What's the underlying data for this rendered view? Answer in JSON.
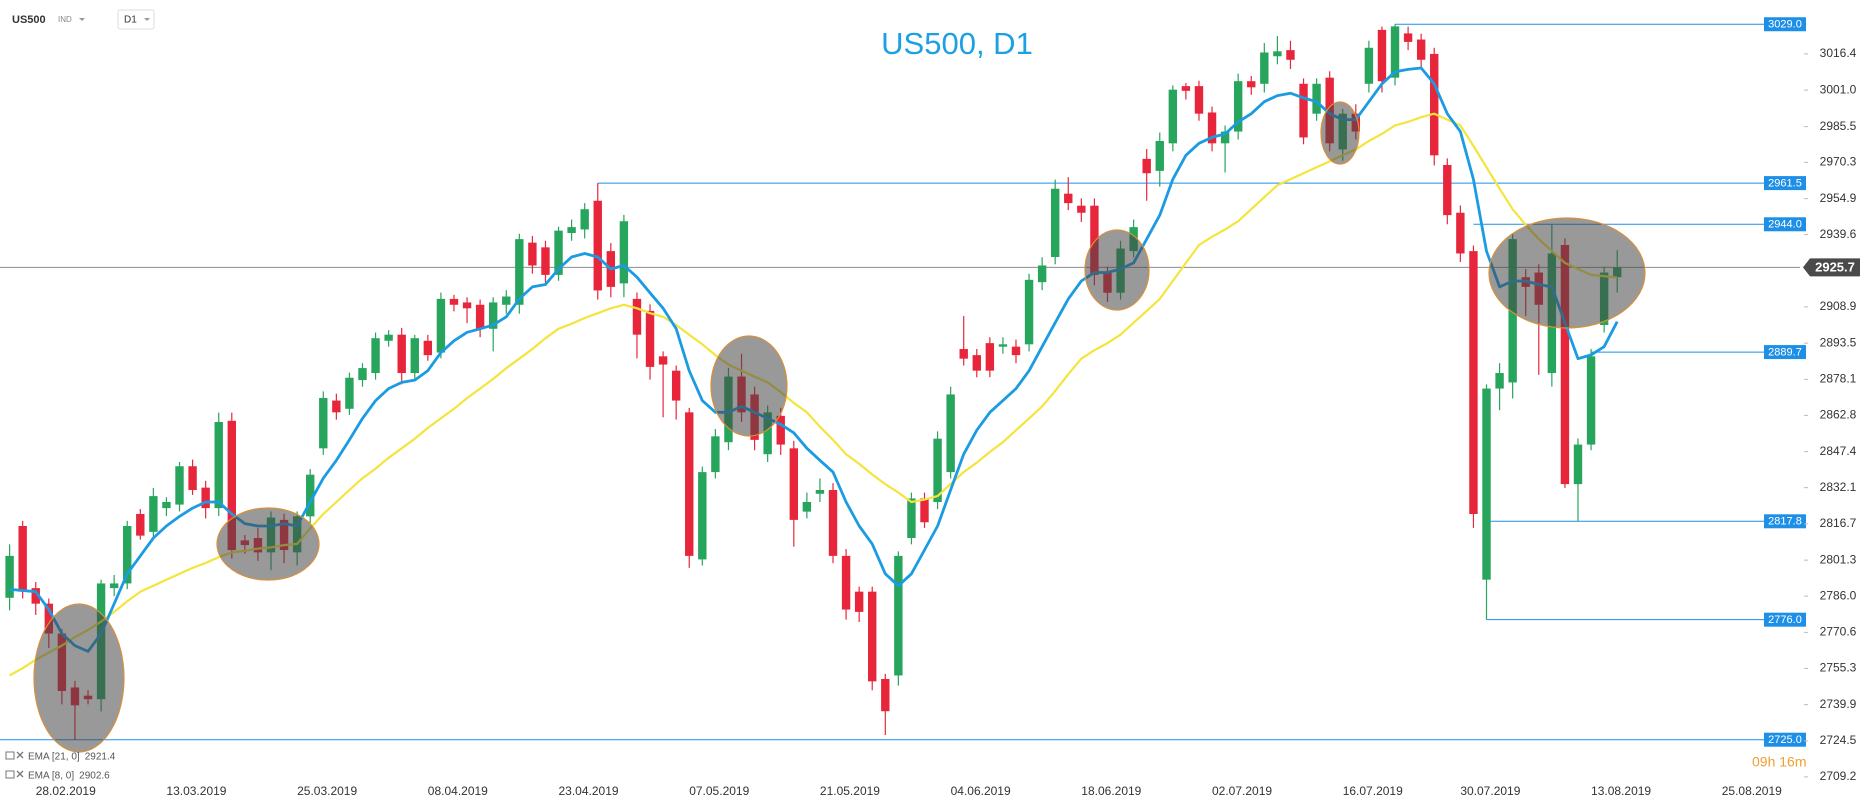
{
  "toolbar": {
    "symbol": "US500",
    "market": "IND",
    "timeframe": "D1"
  },
  "timer": "09h 16m",
  "chart_data": {
    "type": "candlestick",
    "title": "US500, D1",
    "up_color": "#27a55d",
    "down_color": "#e8263b",
    "categories": [
      null,
      null,
      "28.02.2019",
      null,
      null,
      null,
      null,
      null,
      null,
      null,
      null,
      null,
      "13.03.2019",
      null,
      null,
      null,
      null,
      null,
      null,
      null,
      null,
      null,
      "25.03.2019",
      null,
      null,
      null,
      null,
      null,
      null,
      null,
      null,
      null,
      "08.04.2019",
      null,
      null,
      null,
      null,
      null,
      null,
      null,
      null,
      null,
      "23.04.2019",
      null,
      null,
      null,
      null,
      null,
      null,
      null,
      null,
      null,
      "07.05.2019",
      null,
      null,
      null,
      null,
      null,
      null,
      null,
      null,
      null,
      "21.05.2019",
      null,
      null,
      null,
      null,
      null,
      null,
      null,
      null,
      null,
      "04.06.2019",
      null,
      null,
      null,
      null,
      null,
      null,
      null,
      null,
      null,
      "18.06.2019",
      null,
      null,
      null,
      null,
      null,
      null,
      null,
      null,
      null,
      "02.07.2019",
      null,
      null,
      null,
      null,
      null,
      null,
      null,
      null,
      null,
      "16.07.2019",
      null,
      null,
      null,
      null,
      null,
      null,
      null,
      null,
      "30.07.2019",
      null,
      null,
      null,
      null,
      null,
      null,
      null,
      null,
      null,
      "13.08.2019",
      null,
      null,
      null,
      null,
      null,
      null,
      null,
      null,
      null,
      "25.08.2019"
    ],
    "open": [
      2785.3,
      2815.8,
      2789.4,
      2782.8,
      2770.1,
      2747.2,
      2743.7,
      2742.2,
      2789.4,
      2791.4,
      2820.9,
      2813.3,
      2823.4,
      2824.9,
      2841.2,
      2832.1,
      2823.4,
      2860.5,
      2809.7,
      2810.7,
      2804.6,
      2818.4,
      2804.6,
      2819.9,
      2848.8,
      2869.1,
      2865.6,
      2877.8,
      2880.8,
      2894.5,
      2897.1,
      2880.8,
      2894.5,
      2889.5,
      2912.3,
      2910.8,
      2909.8,
      2899.6,
      2909.8,
      2909.8,
      2936.2,
      2934.2,
      2922.5,
      2940.3,
      2941.8,
      2954.0,
      2932.6,
      2918.9,
      2912.3,
      2907.2,
      2887.9,
      2881.8,
      2864.1,
      2801.6,
      2838.7,
      2851.4,
      2879.3,
      2871.7,
      2846.3,
      2862.6,
      2848.8,
      2821.9,
      2829.5,
      2831.1,
      2803.1,
      2787.9,
      2787.9,
      2750.8,
      2752.3,
      2810.7,
      2827.5,
      2826.0,
      2838.7,
      2891.0,
      2888.4,
      2893.5,
      2892.0,
      2892.0,
      2893.0,
      2919.4,
      2930.1,
      2957.0,
      2951.9,
      2951.9,
      2923.5,
      2914.9,
      2932.6,
      2971.8,
      2966.7,
      2978.4,
      3002.7,
      3002.7,
      2991.5,
      2978.4,
      2983.4,
      3004.8,
      3003.7,
      3015.4,
      3018.0,
      3003.7,
      2991.0,
      3006.3,
      2975.8,
      2991.0,
      3003.7,
      3026.6,
      3006.3,
      3025.1,
      3022.5,
      3016.4,
      2969.2,
      2948.9,
      2932.6,
      2793.0,
      2874.2,
      2876.8,
      2921.5,
      2923.5,
      2880.8,
      2935.2,
      2833.6,
      2850.4,
      2901.2,
      2921.5,
      null,
      null,
      null,
      null,
      null,
      null,
      null,
      null
    ],
    "high": [
      2808,
      2818,
      2792,
      2785,
      2772,
      2750,
      2746,
      2793,
      2795,
      2818,
      2823,
      2832,
      2828,
      2843,
      2844,
      2835,
      2864,
      2864,
      2812,
      2815,
      2822,
      2821,
      2822,
      2840,
      2873,
      2872,
      2881,
      2885,
      2898,
      2899,
      2900,
      2897,
      2897,
      2915,
      2914,
      2913,
      2912,
      2913,
      2916,
      2940,
      2939,
      2937,
      2943,
      2946,
      2953,
      2961.5,
      2936,
      2948,
      2915,
      2910,
      2890,
      2884,
      2866,
      2841,
      2857,
      2883,
      2889,
      2875,
      2867,
      2866,
      2852,
      2830,
      2836,
      2834,
      2806,
      2790,
      2790,
      2753,
      2805,
      2830,
      2830,
      2856,
      2875,
      2905,
      2891,
      2896,
      2896,
      2895,
      2923,
      2930,
      2963,
      2964,
      2955,
      2955,
      2926,
      2937,
      2946,
      2976,
      2983,
      3003,
      3004,
      3005,
      2994,
      2986,
      3008,
      3007,
      3021,
      3024,
      3022,
      3006,
      3006,
      3009,
      2993,
      2995,
      3022,
      3028,
      3029.0,
      3028,
      3025,
      3019,
      2972,
      2952,
      2935,
      2876,
      2885,
      2940,
      2925,
      2927,
      2944.0,
      2938,
      2853,
      2891,
      2926,
      2933,
      null,
      null,
      null,
      null,
      null,
      null,
      null,
      null
    ],
    "low": [
      2780,
      2785,
      2778,
      2764,
      2740,
      2725.0,
      2740,
      2737,
      2786,
      2789,
      2810,
      2811,
      2820,
      2822,
      2829,
      2819,
      2820,
      2802,
      2804,
      2801,
      2797,
      2800,
      2799,
      2817,
      2846,
      2861,
      2863,
      2875,
      2878,
      2892,
      2876,
      2878,
      2886,
      2887,
      2907,
      2902,
      2896,
      2890,
      2906,
      2906,
      2923,
      2919,
      2920,
      2937,
      2938,
      2912,
      2913,
      2913,
      2887,
      2878,
      2862,
      2861,
      2798,
      2799,
      2836,
      2848,
      2860,
      2848,
      2843,
      2846,
      2807,
      2819,
      2826,
      2800,
      2776,
      2775,
      2746,
      2727,
      2748,
      2808,
      2815,
      2823,
      2836,
      2884,
      2879,
      2879,
      2889,
      2885,
      2890,
      2916,
      2927,
      2950,
      2945,
      2918,
      2911,
      2912,
      2930,
      2954,
      2960,
      2975,
      2997,
      2988,
      2975,
      2966,
      2980,
      2999,
      3000,
      3012,
      3010,
      2978,
      2988,
      2975,
      2971,
      2980,
      3000,
      3000,
      3003,
      3018,
      3010,
      2969,
      2944,
      2928,
      2815,
      2776.0,
      2865,
      2870,
      2905,
      2880,
      2875,
      2832,
      2817.8,
      2848,
      2898,
      2915,
      null,
      null,
      null,
      null,
      null,
      null,
      null,
      null
    ],
    "close": [
      2803.1,
      2787.9,
      2782.8,
      2770.1,
      2745.7,
      2739.6,
      2742.2,
      2791.4,
      2791.4,
      2815.8,
      2811.7,
      2828.5,
      2826.0,
      2841.2,
      2831.1,
      2823.4,
      2860.0,
      2805.6,
      2807.7,
      2804.6,
      2819.4,
      2805.6,
      2819.9,
      2837.6,
      2870.2,
      2864.1,
      2878.8,
      2882.9,
      2895.6,
      2897.1,
      2880.8,
      2895.6,
      2888.4,
      2912.3,
      2909.8,
      2908.3,
      2899.6,
      2910.8,
      2913.3,
      2937.7,
      2926.5,
      2922.5,
      2941.3,
      2942.8,
      2950.4,
      2915.9,
      2917.4,
      2945.3,
      2897.1,
      2883.4,
      2884.4,
      2869.1,
      2803.1,
      2838.7,
      2853.9,
      2879.3,
      2864.1,
      2852.4,
      2864.1,
      2850.4,
      2818.4,
      2826.0,
      2831.1,
      2803.1,
      2780.3,
      2779.3,
      2749.8,
      2737.1,
      2803.1,
      2827.5,
      2817.4,
      2852.9,
      2871.7,
      2886.9,
      2881.8,
      2881.8,
      2893.0,
      2888.4,
      2920.4,
      2926.5,
      2959.1,
      2953.0,
      2948.9,
      2922.5,
      2914.9,
      2933.7,
      2942.8,
      2965.7,
      2979.4,
      3001.2,
      3000.7,
      2991.0,
      2978.4,
      2983.4,
      3004.8,
      3002.2,
      3017.0,
      3017.5,
      3013.9,
      2980.9,
      3003.7,
      2978.4,
      2991.0,
      2983.4,
      3019.0,
      3004.8,
      3028.1,
      3021.5,
      3013.9,
      2973.3,
      2947.9,
      2931.6,
      2820.9,
      2874.2,
      2880.8,
      2937.7,
      2917.4,
      2909.8,
      2931.6,
      2833.6,
      2850.4,
      2887.9,
      2923.5,
      2925.7,
      null,
      null,
      null,
      null,
      null,
      null,
      null,
      null
    ],
    "series": [
      {
        "name": "EMA [21, 0]",
        "color": "#f4e43c",
        "values": [
          2752.3,
          2755.4,
          2759.0,
          2762.0,
          2765.0,
          2768.6,
          2771.6,
          2775.2,
          2779.3,
          2783.8,
          2787.9,
          2790.4,
          2793.0,
          2795.5,
          2798.0,
          2800.1,
          2802.6,
          2804.6,
          2805.2,
          2806.2,
          2806.7,
          2807.7,
          2808.2,
          2814.8,
          2820.9,
          2826.0,
          2831.1,
          2836.1,
          2840.2,
          2844.8,
          2848.8,
          2852.9,
          2857.5,
          2861.5,
          2865.6,
          2870.2,
          2874.2,
          2878.3,
          2882.9,
          2886.9,
          2891.0,
          2895.6,
          2899.6,
          2901.7,
          2904.2,
          2906.2,
          2908.3,
          2909.8,
          2908.3,
          2906.2,
          2904.7,
          2901.2,
          2897.1,
          2893.0,
          2888.4,
          2884.4,
          2881.8,
          2879.3,
          2876.8,
          2872.7,
          2868.1,
          2864.1,
          2858.0,
          2852.4,
          2846.3,
          2842.2,
          2837.7,
          2833.6,
          2830.0,
          2826.0,
          2827.0,
          2828.5,
          2833.6,
          2838.7,
          2842.7,
          2847.3,
          2851.4,
          2856.5,
          2861.5,
          2866.6,
          2873.2,
          2880.3,
          2886.9,
          2890.5,
          2893.5,
          2897.1,
          2902.2,
          2907.2,
          2912.3,
          2919.9,
          2927.6,
          2935.2,
          2938.7,
          2941.8,
          2945.3,
          2950.4,
          2955.5,
          2960.6,
          2963.1,
          2965.7,
          2968.2,
          2970.7,
          2973.3,
          2975.8,
          2979.4,
          2982.4,
          2986.0,
          2987.5,
          2989.5,
          2991.0,
          2988.5,
          2986.0,
          2977.3,
          2968.2,
          2959.1,
          2950.4,
          2943.8,
          2937.7,
          2932.6,
          2927.6,
          2925.0,
          2922.5,
          2922.0,
          2921.4,
          null,
          null,
          null,
          null,
          null,
          null,
          null,
          null
        ]
      },
      {
        "name": "EMA [8, 0]",
        "color": "#1a9be2",
        "values": [
          2788.9,
          2788.4,
          2787.9,
          2780.3,
          2770.1,
          2765.0,
          2762.5,
          2770.1,
          2782.8,
          2795.5,
          2803.1,
          2810.7,
          2815.8,
          2819.9,
          2823.4,
          2826.0,
          2826.0,
          2820.9,
          2816.8,
          2815.8,
          2815.8,
          2816.8,
          2815.8,
          2826.0,
          2836.1,
          2843.7,
          2852.4,
          2861.5,
          2869.1,
          2874.2,
          2876.8,
          2877.8,
          2881.8,
          2889.5,
          2894.5,
          2898.1,
          2899.6,
          2901.2,
          2904.7,
          2912.3,
          2917.4,
          2918.4,
          2925.0,
          2930.1,
          2931.6,
          2930.1,
          2925.0,
          2926.5,
          2921.5,
          2914.9,
          2908.3,
          2899.6,
          2881.8,
          2869.1,
          2864.1,
          2864.1,
          2866.6,
          2864.1,
          2861.5,
          2859.0,
          2855.4,
          2848.8,
          2843.7,
          2838.7,
          2826.0,
          2815.8,
          2808.2,
          2795.5,
          2790.4,
          2795.5,
          2805.6,
          2815.8,
          2831.1,
          2846.3,
          2856.5,
          2864.1,
          2869.1,
          2874.2,
          2881.8,
          2892.0,
          2902.2,
          2912.3,
          2919.9,
          2923.5,
          2923.5,
          2925.0,
          2927.6,
          2937.7,
          2947.9,
          2963.1,
          2973.3,
          2978.4,
          2980.9,
          2982.4,
          2987.5,
          2991.0,
          2996.1,
          2998.7,
          2999.7,
          2997.7,
          2996.1,
          2991.0,
          2988.5,
          2988.5,
          2996.1,
          3003.7,
          3008.8,
          3009.8,
          3010.4,
          3003.7,
          2991.0,
          2983.4,
          2963.1,
          2932.6,
          2917.4,
          2919.9,
          2919.9,
          2918.4,
          2917.4,
          2902.2,
          2886.9,
          2888.5,
          2892.0,
          2902.6,
          null,
          null,
          null,
          null,
          null,
          null,
          null,
          null
        ]
      }
    ],
    "levels": [
      {
        "value": 3029,
        "label": "3029.0"
      },
      2961.5,
      {
        "value": 2944,
        "label": "2944.0"
      },
      2889.7,
      2817.8,
      {
        "value": 2776,
        "label": "2776.0"
      },
      {
        "value": 2725,
        "label": "2725.0"
      }
    ],
    "level_color": "#1e8fe6",
    "current_price": 2925.7,
    "ylim": [
      2706.6,
      3039.3
    ],
    "yticks": [
      3016.4,
      {
        "value": 3001,
        "label": "3001.0"
      },
      2985.5,
      2970.3,
      2954.9,
      2939.6,
      2908.9,
      2893.5,
      2878.1,
      2862.8,
      2847.4,
      2832.1,
      2816.7,
      2801.3,
      {
        "value": 2786,
        "label": "2786.0"
      },
      2770.6,
      2755.3,
      2739.9,
      2724.5,
      2709.2
    ],
    "grid": false
  }
}
